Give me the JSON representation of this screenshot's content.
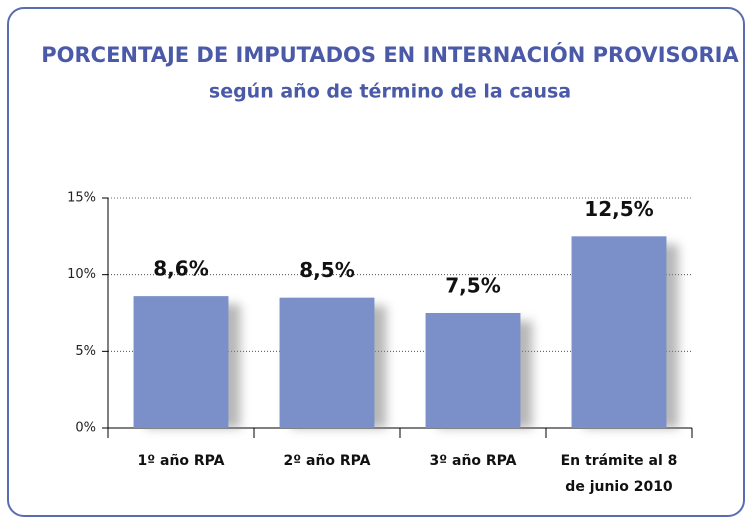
{
  "chart_data": {
    "type": "bar",
    "title": "PORCENTAJE DE IMPUTADOS EN INTERNACIÓN PROVISORIA",
    "subtitle": "según año de término de la causa",
    "categories": [
      "1º año RPA",
      "2º año RPA",
      "3º año RPA",
      "En trámite al 8 de junio 2010"
    ],
    "values": [
      8.6,
      8.5,
      7.5,
      12.5
    ],
    "value_labels": [
      "8,6%",
      "8,5%",
      "7,5%",
      "12,5%"
    ],
    "color": "#7b8fc8",
    "ylim": [
      0,
      15
    ],
    "yticks": [
      {
        "value": 0,
        "label": "0%"
      },
      {
        "value": 5,
        "label": "5%"
      },
      {
        "value": 10,
        "label": "10%"
      },
      {
        "value": 15,
        "label": "15%"
      }
    ],
    "grid": true
  }
}
